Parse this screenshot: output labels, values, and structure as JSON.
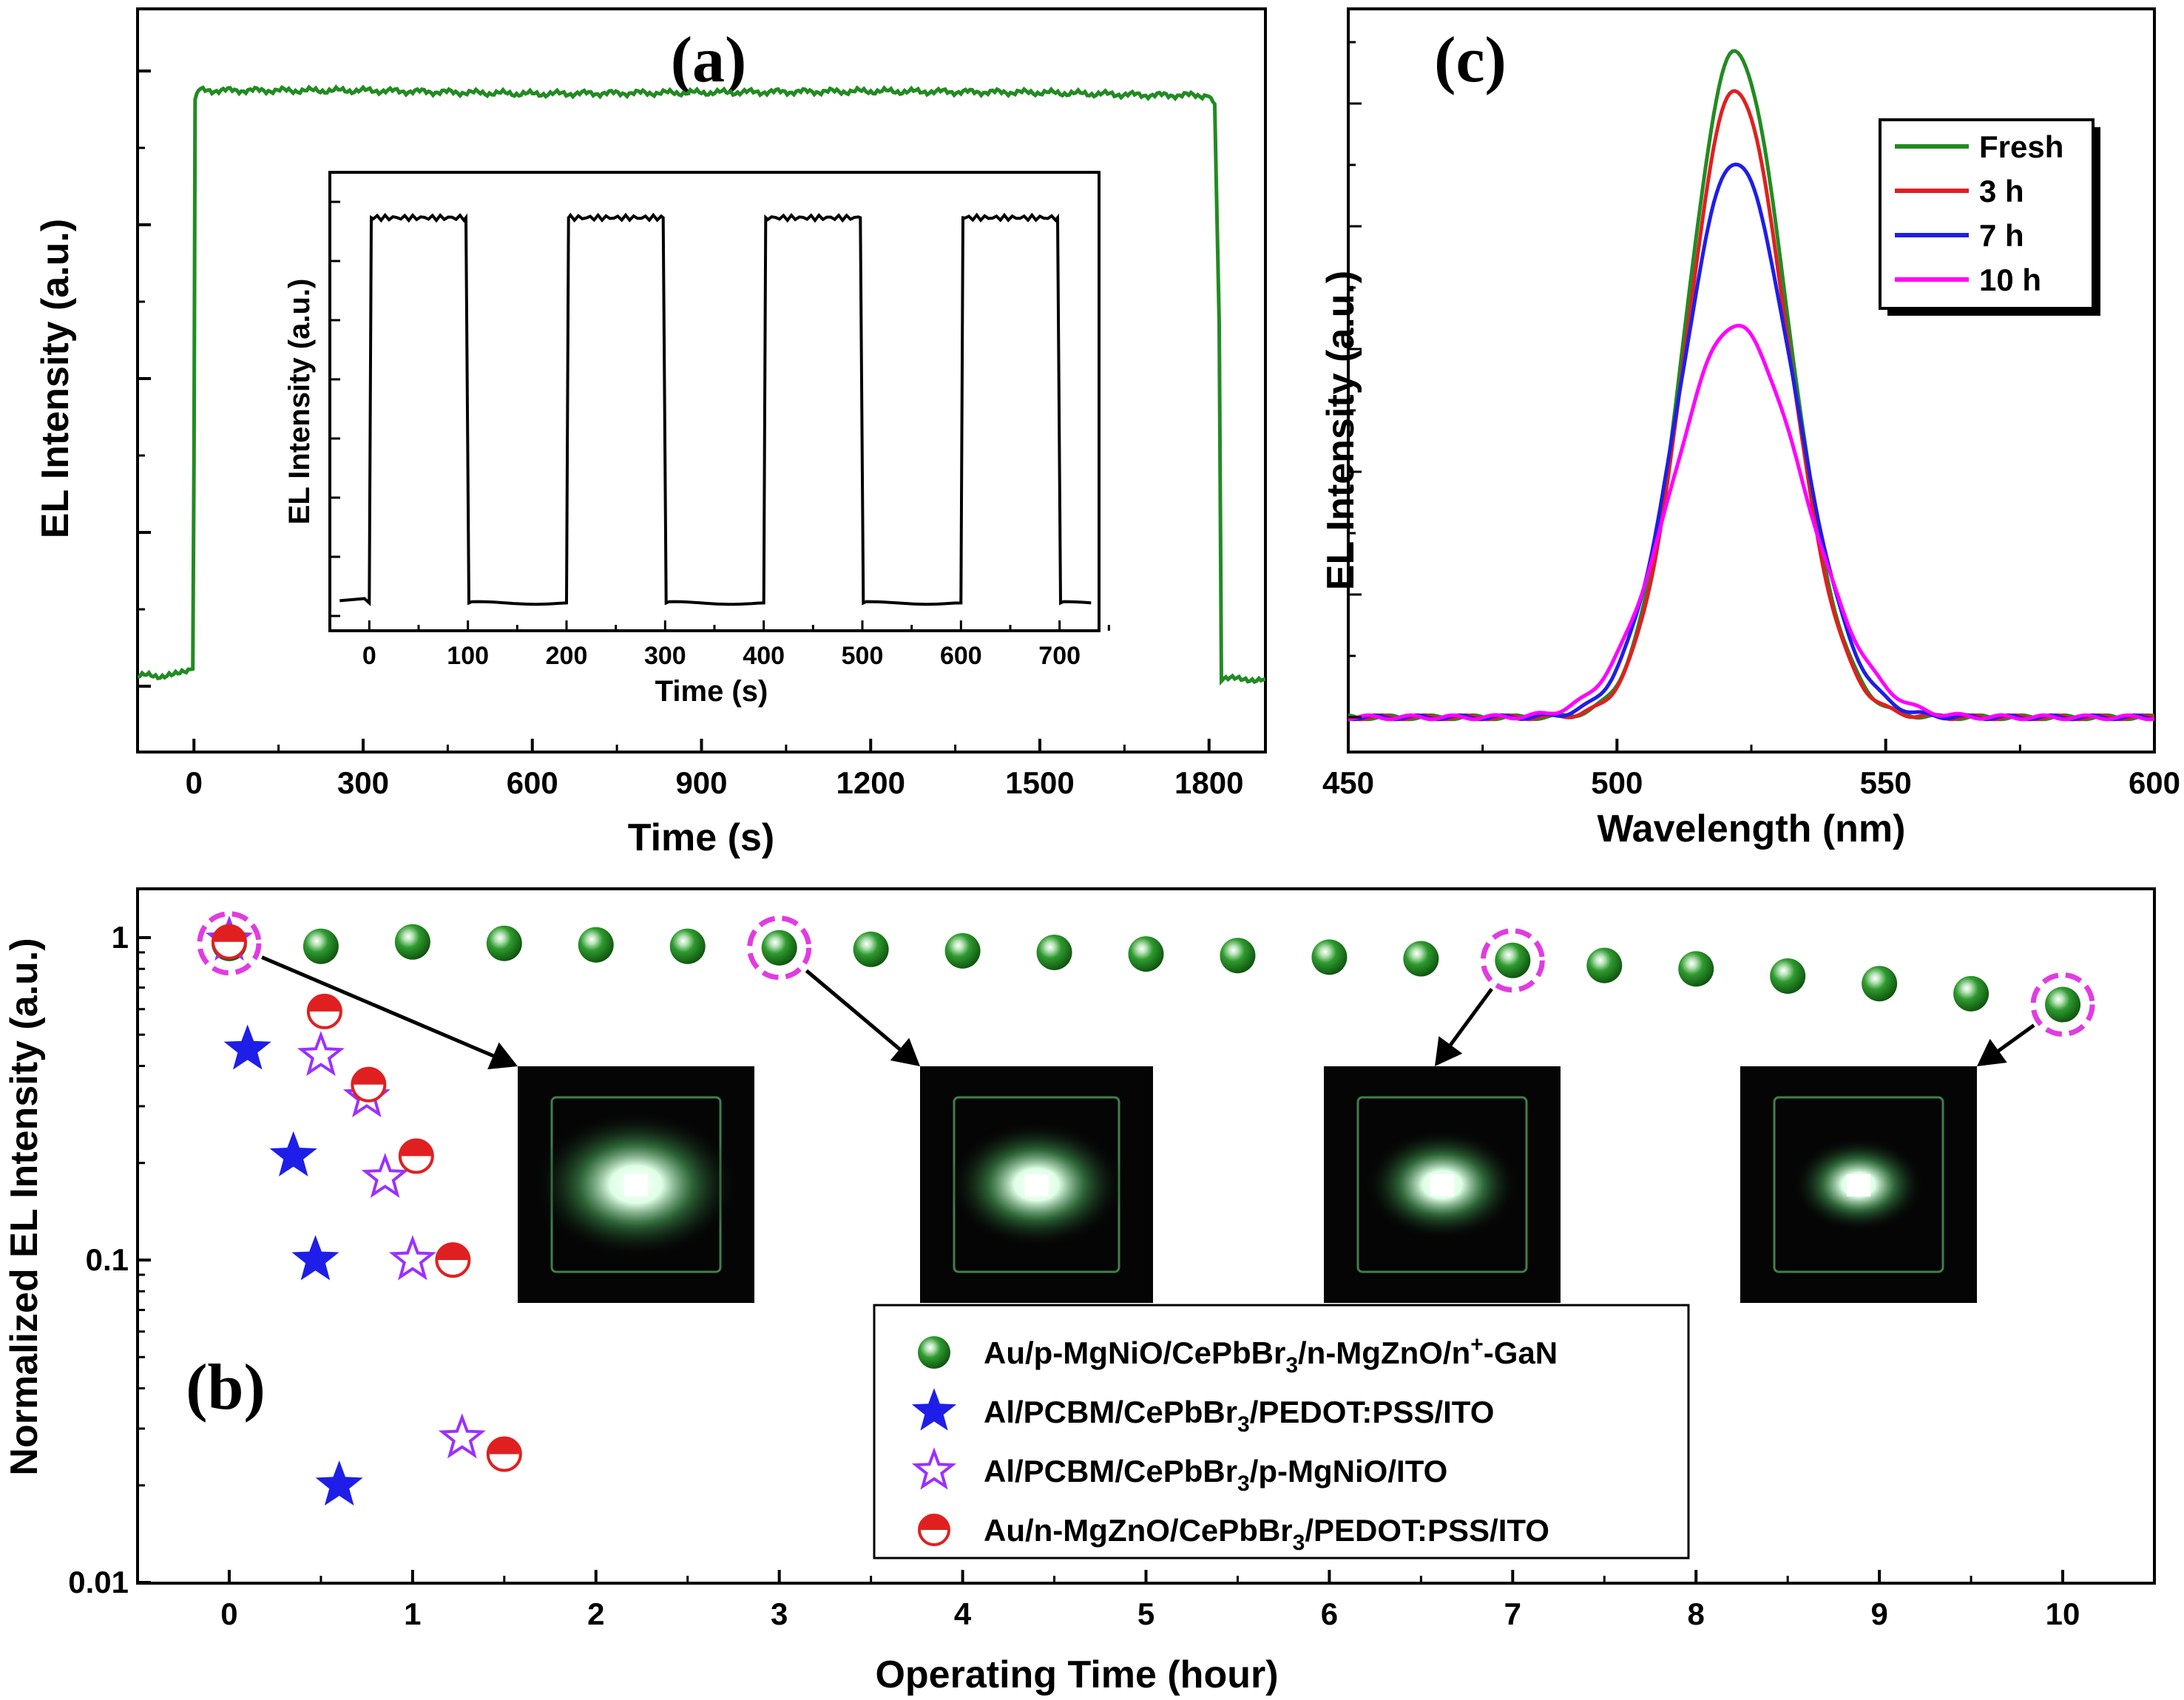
{
  "chart_data": [
    {
      "id": "a",
      "type": "line",
      "panel_label": "(a)",
      "xlabel": "Time (s)",
      "ylabel": "EL Intensity (a.u.)",
      "xlim": [
        -100,
        1900
      ],
      "ylim": [
        0,
        1.0
      ],
      "xticks": [
        0,
        300,
        600,
        900,
        1200,
        1500,
        1800
      ],
      "color": "#228B22",
      "series": [
        {
          "x": [
            -100,
            -40,
            -10,
            -2,
            0,
            2,
            8,
            300,
            600,
            900,
            1200,
            1500,
            1700,
            1800,
            1810,
            1818,
            1822,
            1900
          ],
          "y": [
            0.08,
            0.08,
            0.085,
            0.09,
            0.4,
            0.93,
            0.945,
            0.945,
            0.94,
            0.942,
            0.944,
            0.942,
            0.938,
            0.938,
            0.925,
            0.6,
            0.075,
            0.075
          ]
        }
      ],
      "inset": {
        "type": "line",
        "xlabel": "Time (s)",
        "ylabel": "EL Intensity (a.u.)",
        "xlim": [
          -40,
          740
        ],
        "ylim": [
          0,
          1.0
        ],
        "xticks": [
          0,
          100,
          200,
          300,
          400,
          500,
          600,
          700
        ],
        "color": "#000000",
        "on_intervals": [
          [
            0,
            100
          ],
          [
            200,
            300
          ],
          [
            400,
            500
          ],
          [
            600,
            700
          ]
        ],
        "low": 0.05,
        "high": 0.93
      }
    },
    {
      "id": "c",
      "type": "line",
      "panel_label": "(c)",
      "xlabel": "Wavelength (nm)",
      "ylabel": "EL Intensity (a.u.)",
      "xlim": [
        450,
        600
      ],
      "ylim": [
        0,
        1.0
      ],
      "xticks": [
        450,
        500,
        550,
        600
      ],
      "legend": {
        "position": "top-right"
      },
      "series": [
        {
          "name": "Fresh",
          "color": "#228B22",
          "peak_nm": 522,
          "peak": 0.96,
          "sigma": 9.0
        },
        {
          "name": "3 h",
          "color": "#E02020",
          "peak_nm": 522,
          "peak": 0.905,
          "sigma": 9.0
        },
        {
          "name": "7 h",
          "color": "#1E1EE8",
          "peak_nm": 522,
          "peak": 0.8,
          "sigma": 10.0
        },
        {
          "name": "10 h",
          "color": "#FF00FF",
          "peak_nm": 522,
          "peak": 0.565,
          "sigma": 11.5
        }
      ]
    },
    {
      "id": "b",
      "type": "scatter",
      "panel_label": "(b)",
      "xlabel": "Operating Time (hour)",
      "ylabel": "Normalized EL Intensity (a.u.)",
      "xlim": [
        -0.5,
        10.5
      ],
      "ylim": [
        0.01,
        1.5
      ],
      "yscale": "log",
      "xticks": [
        0,
        1,
        2,
        3,
        4,
        5,
        6,
        7,
        8,
        9,
        10
      ],
      "yticks": [
        0.01,
        0.1,
        1
      ],
      "ytick_labels": [
        "0.01",
        "0.1",
        "1"
      ],
      "legend": {
        "position": "bottom-right"
      },
      "series": [
        {
          "name": "Au/p-MgNiO/CePbBr3/n-MgZnO/n+-GaN",
          "marker": "green-sphere",
          "color": "#2E9B2E",
          "x": [
            0,
            0.5,
            1,
            1.5,
            2,
            2.5,
            3,
            3.5,
            4,
            4.5,
            5,
            5.5,
            6,
            6.5,
            7,
            7.5,
            8,
            8.5,
            9,
            9.5,
            10
          ],
          "y": [
            0.96,
            0.94,
            0.97,
            0.96,
            0.95,
            0.94,
            0.93,
            0.92,
            0.91,
            0.9,
            0.89,
            0.88,
            0.87,
            0.86,
            0.85,
            0.82,
            0.8,
            0.76,
            0.72,
            0.67,
            0.62
          ]
        },
        {
          "name": "Al/PCBM/CePbBr3/PEDOT:PSS/ITO",
          "marker": "filled-star",
          "color": "#1E1EE8",
          "x": [
            0.1,
            0.35,
            0.47,
            0.6
          ],
          "y": [
            0.45,
            0.21,
            0.1,
            0.02
          ]
        },
        {
          "name": "Al/PCBM/CePbBr3/p-MgNiO/ITO",
          "marker": "open-star",
          "color": "#9B30FF",
          "x": [
            0,
            0.5,
            0.75,
            0.85,
            1.0,
            1.27
          ],
          "y": [
            0.98,
            0.43,
            0.32,
            0.18,
            0.1,
            0.028
          ]
        },
        {
          "name": "Au/n-MgZnO/CePbBr3/PEDOT:PSS/ITO",
          "marker": "half-circle",
          "color": "#E02020",
          "x": [
            0,
            0.52,
            0.76,
            1.02,
            1.22,
            1.5
          ],
          "y": [
            0.97,
            0.59,
            0.35,
            0.21,
            0.1,
            0.025
          ]
        }
      ],
      "highlight_times": [
        0,
        3,
        7,
        10
      ]
    }
  ],
  "legend_b_labels": [
    {
      "pre": "Au/p-MgNiO/CePbBr",
      "sub": "3",
      "mid": "/n-MgZnO/n",
      "sup": "+",
      "post": "-GaN"
    },
    {
      "pre": "Al/PCBM/CePbBr",
      "sub": "3",
      "mid": "/PEDOT:PSS/ITO",
      "sup": "",
      "post": ""
    },
    {
      "pre": "Al/PCBM/CePbBr",
      "sub": "3",
      "mid": "/p-MgNiO/ITO",
      "sup": "",
      "post": ""
    },
    {
      "pre": "Au/n-MgZnO/CePbBr",
      "sub": "3",
      "mid": "/PEDOT:PSS/ITO",
      "sup": "",
      "post": ""
    }
  ]
}
